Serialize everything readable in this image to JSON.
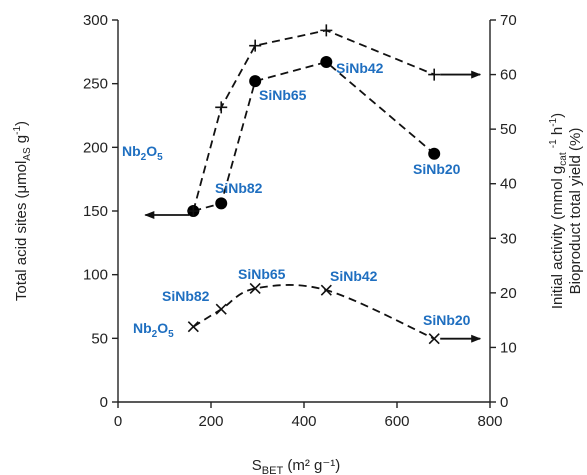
{
  "chart_data": {
    "type": "scatter",
    "x_axis": {
      "range": [
        0,
        800
      ],
      "ticks": [
        0,
        200,
        400,
        600,
        800
      ],
      "label": {
        "main": "S",
        "sub": "BET",
        "unit": " (m² g⁻¹)"
      }
    },
    "y_left": {
      "range": [
        0,
        300
      ],
      "ticks": [
        0,
        50,
        100,
        150,
        200,
        250,
        300
      ],
      "label": {
        "a": "Total acid sites (μmol",
        "sub": "AS",
        "b": " g",
        "sup": "-1",
        "c": ")"
      }
    },
    "y_right": {
      "range": [
        0,
        70
      ],
      "ticks": [
        0,
        10,
        20,
        30,
        40,
        50,
        60,
        70
      ],
      "label1": {
        "a": "Initial activity (mmol g",
        "sub": "cat",
        "b": " ",
        "sup": "-1",
        "c": " h",
        "sup2": "-1",
        "d": ")"
      },
      "label2": "Bioproduct  total yield (%)"
    },
    "label_color": "#1f6fc0",
    "series": [
      {
        "marker": "circle",
        "axis": "left",
        "points": [
          {
            "x": 162,
            "y": 150
          },
          {
            "x": 222,
            "y": 156
          },
          {
            "x": 295,
            "y": 252
          },
          {
            "x": 448,
            "y": 267
          },
          {
            "x": 680,
            "y": 195
          }
        ],
        "arrow": "left"
      },
      {
        "marker": "plus",
        "axis": "right",
        "points": [
          {
            "x": 162,
            "y": 35
          },
          {
            "x": 222,
            "y": 54
          },
          {
            "x": 295,
            "y": 65.3
          },
          {
            "x": 448,
            "y": 68.1
          },
          {
            "x": 680,
            "y": 60
          }
        ],
        "arrow": "right"
      },
      {
        "marker": "x",
        "axis": "right",
        "points": [
          {
            "x": 162,
            "y": 13.8
          },
          {
            "x": 222,
            "y": 17
          },
          {
            "x": 295,
            "y": 20.8
          },
          {
            "x": 448,
            "y": 20.5
          },
          {
            "x": 680,
            "y": 11.6
          }
        ],
        "arrow": "right"
      }
    ],
    "point_labels": [
      {
        "text": "Nb",
        "sub": "2",
        "text2": "O",
        "sub2": "5"
      },
      {
        "text": "SiNb82"
      },
      {
        "text": "SiNb65"
      },
      {
        "text": "SiNb42"
      },
      {
        "text": "SiNb20"
      },
      {
        "text": "Nb",
        "sub": "2",
        "text2": "O",
        "sub2": "5"
      },
      {
        "text": "SiNb82"
      },
      {
        "text": "SiNb65"
      },
      {
        "text": "SiNb42"
      },
      {
        "text": "SiNb20"
      }
    ]
  }
}
